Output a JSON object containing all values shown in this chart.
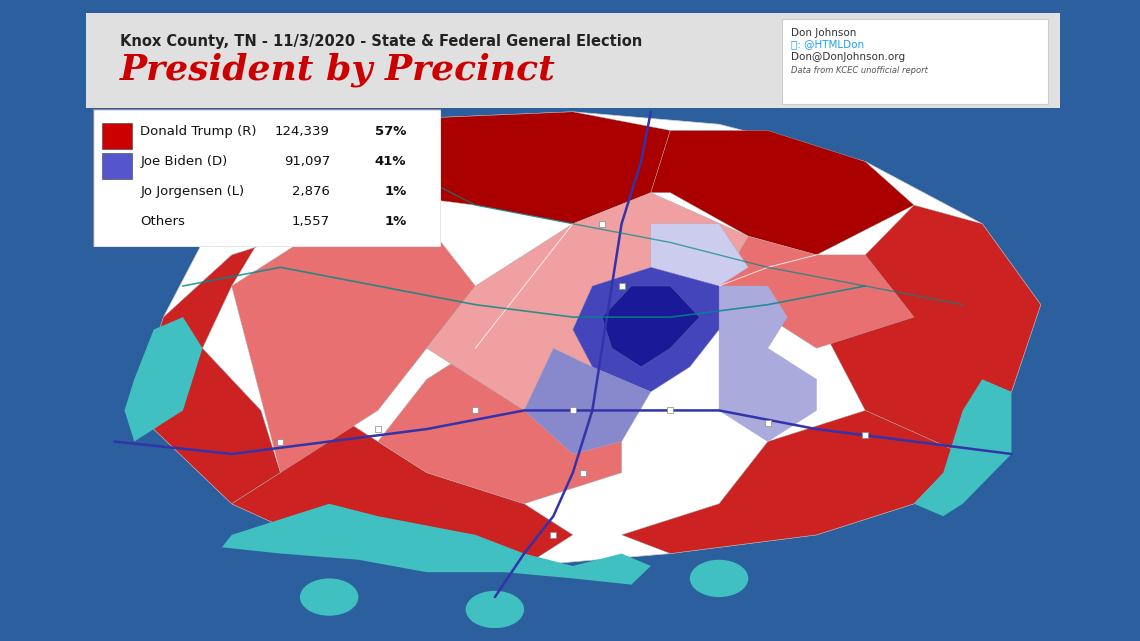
{
  "title_sub": "Knox County, TN - 11/3/2020 - State & Federal General Election",
  "title_main": "President by Precinct",
  "title_main_color": "#cc0000",
  "title_sub_color": "#222222",
  "background_outer": "#2b5f9e",
  "background_header": "#e0e0e0",
  "background_map": "#ffffff",
  "legend_entries": [
    {
      "label": "Donald Trump (R)",
      "votes": "124,339",
      "pct": "57%",
      "color": "#cc0000",
      "show_box": true
    },
    {
      "label": "Joe Biden (D)",
      "votes": "91,097",
      "pct": "41%",
      "color": "#5555cc",
      "show_box": true
    },
    {
      "label": "Jo Jorgensen (L)",
      "votes": "2,876",
      "pct": "1%",
      "color": null,
      "show_box": false
    },
    {
      "label": "Others",
      "votes": "1,557",
      "pct": "1%",
      "color": null,
      "show_box": false
    }
  ],
  "attribution_line1": "Don Johnson",
  "attribution_line2": ": @HTMLDon",
  "attribution_line3": "Don@DonJohnson.org",
  "attribution_line4": "Data from KCEC unofficial report",
  "map_colors": {
    "deep_red": "#aa0000",
    "medium_red": "#cc2222",
    "light_red": "#e87070",
    "lighter_red": "#f0a0a0",
    "light_salmon": "#f5c0c0",
    "deep_blue": "#1a1a99",
    "medium_blue": "#4444bb",
    "light_blue": "#8888cc",
    "lighter_blue": "#aaaadd",
    "very_light_blue": "#ccccee",
    "teal": "#00aaaa",
    "water": "#40c0c0",
    "road_blue": "#3333aa",
    "road_teal": "#008888"
  }
}
